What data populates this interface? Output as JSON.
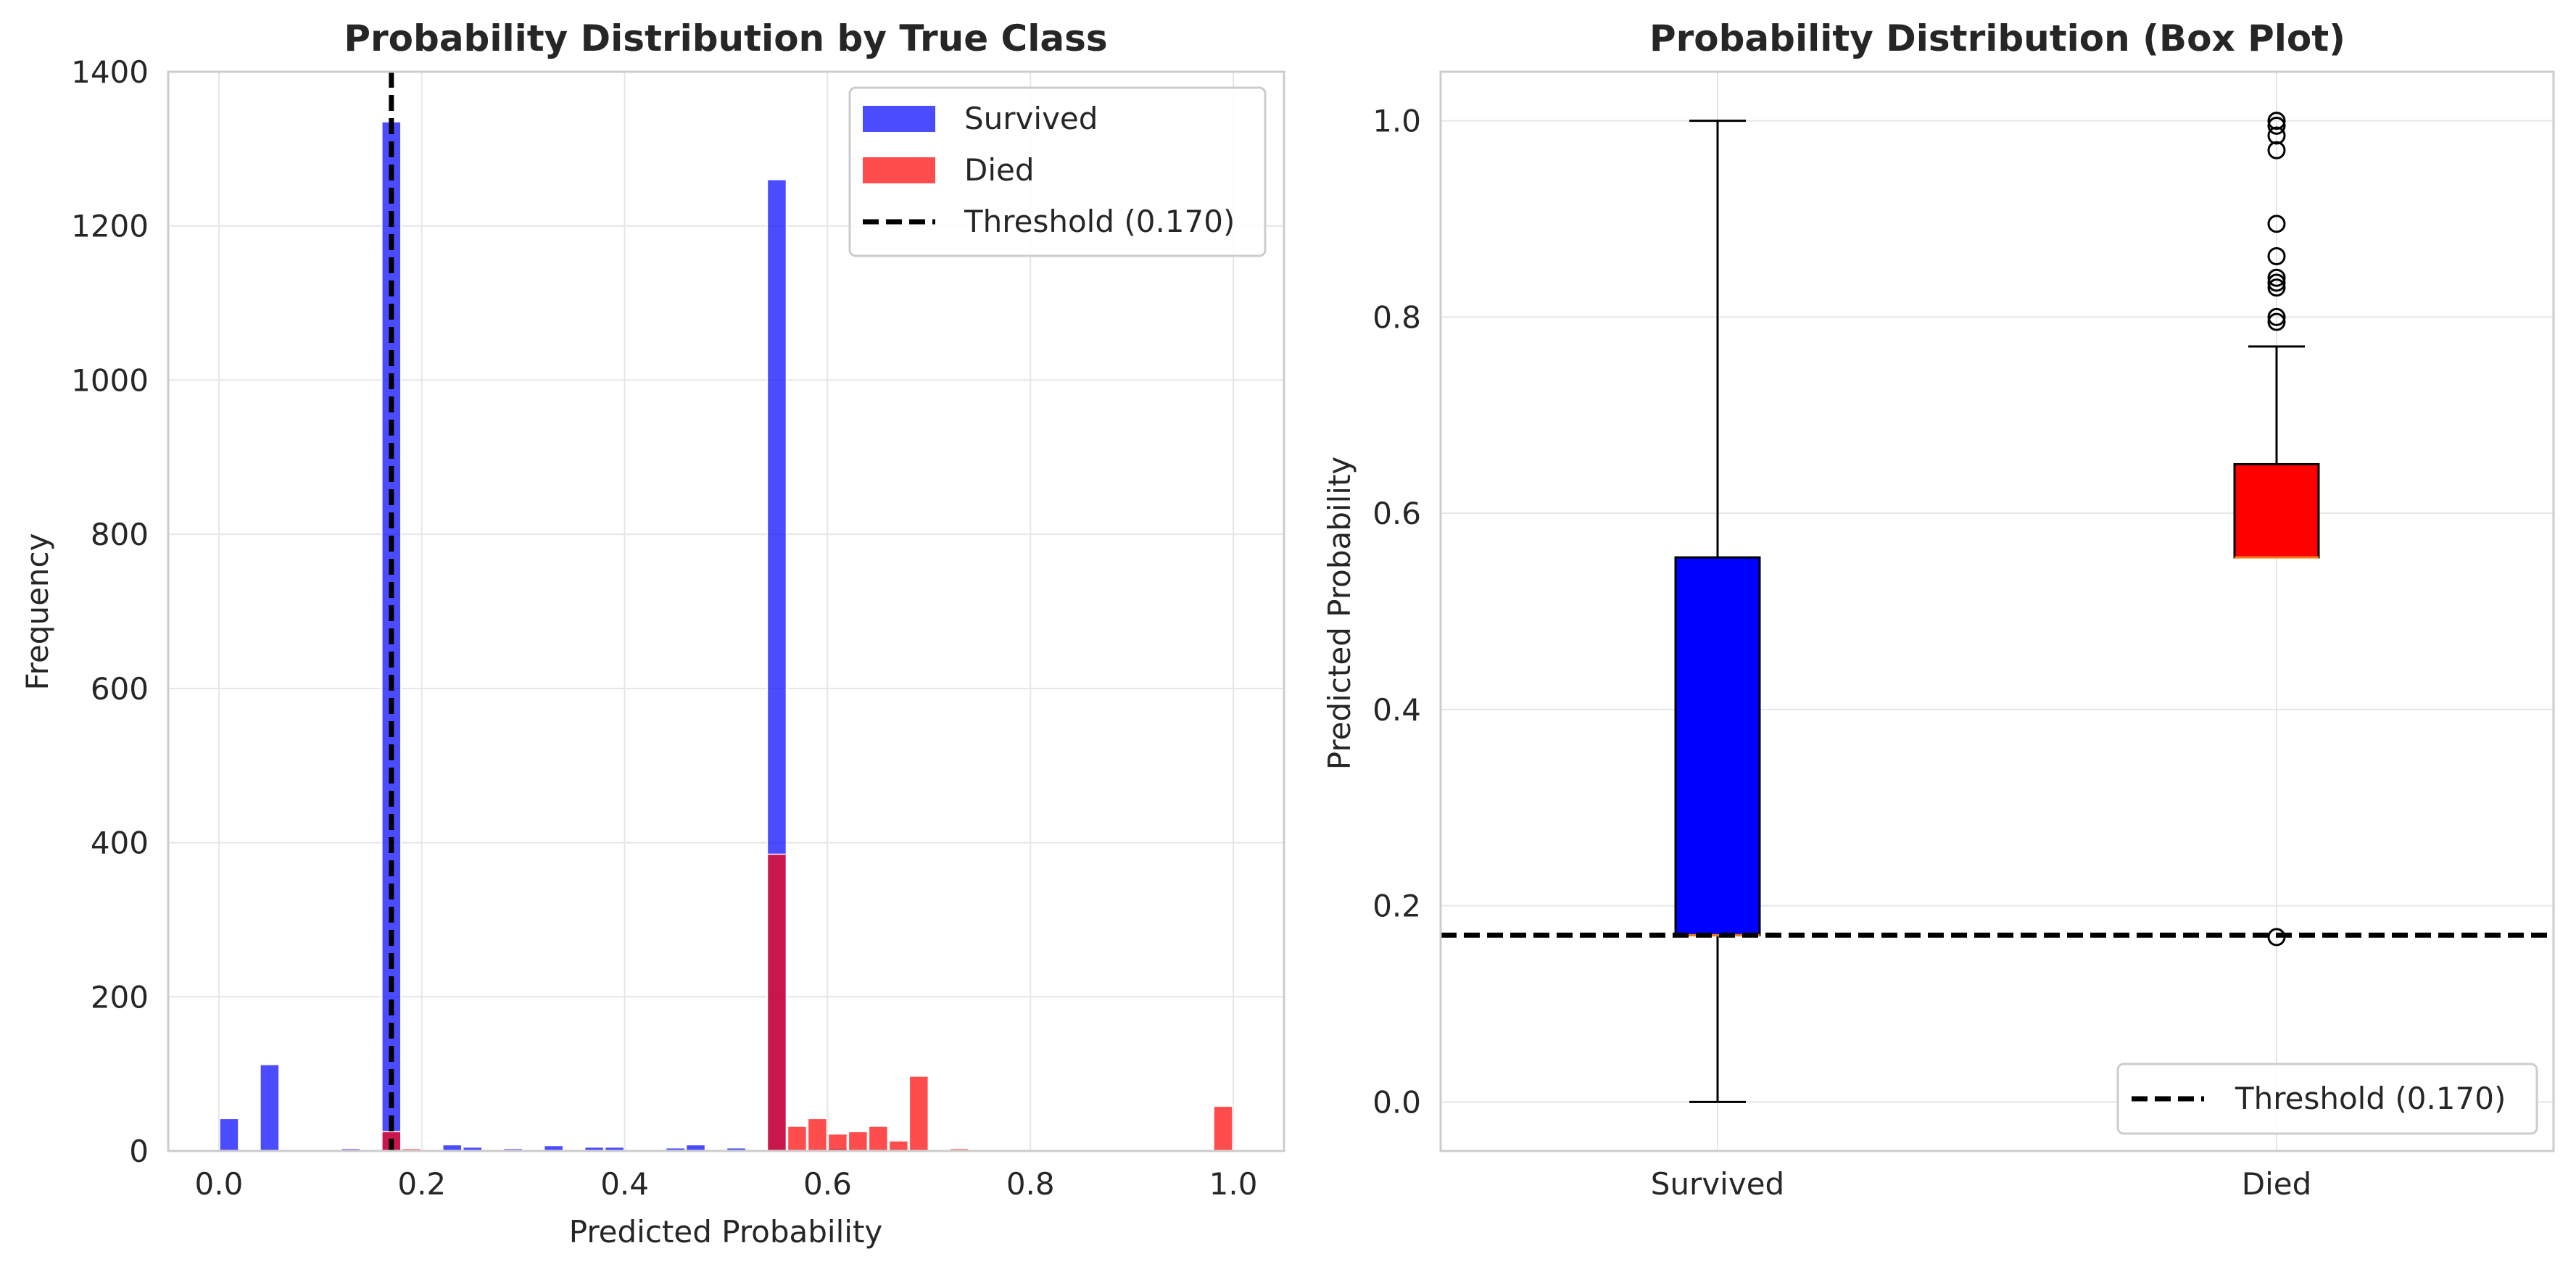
{
  "figure": {
    "background": "#ffffff",
    "grid_color": "#e6e6e6",
    "spine_color": "#cccccc"
  },
  "chart_data": [
    {
      "type": "histogram",
      "title": "Probability Distribution by True Class",
      "xlabel": "Predicted Probability",
      "ylabel": "Frequency",
      "xlim": [
        -0.05,
        1.05
      ],
      "ylim": [
        0,
        1400
      ],
      "xticks": [
        0.0,
        0.2,
        0.4,
        0.6,
        0.8,
        1.0
      ],
      "xtick_labels": [
        "0.0",
        "0.2",
        "0.4",
        "0.6",
        "0.8",
        "1.0"
      ],
      "yticks": [
        0,
        200,
        400,
        600,
        800,
        1000,
        1200,
        1400
      ],
      "ytick_labels": [
        "0",
        "200",
        "400",
        "600",
        "800",
        "1000",
        "1200",
        "1400"
      ],
      "grid": true,
      "legend_position": "top-right",
      "bin_width": 0.02,
      "series": [
        {
          "name": "Survived",
          "color": "#0000ff",
          "alpha": 0.7,
          "bins": [
            {
              "x": 0.0,
              "count": 42
            },
            {
              "x": 0.04,
              "count": 112
            },
            {
              "x": 0.12,
              "count": 3
            },
            {
              "x": 0.16,
              "count": 1335
            },
            {
              "x": 0.22,
              "count": 8
            },
            {
              "x": 0.24,
              "count": 5
            },
            {
              "x": 0.28,
              "count": 3
            },
            {
              "x": 0.32,
              "count": 7
            },
            {
              "x": 0.36,
              "count": 5
            },
            {
              "x": 0.38,
              "count": 5
            },
            {
              "x": 0.44,
              "count": 4
            },
            {
              "x": 0.46,
              "count": 8
            },
            {
              "x": 0.5,
              "count": 4
            },
            {
              "x": 0.54,
              "count": 1260
            },
            {
              "x": 0.6,
              "count": 3
            },
            {
              "x": 0.7,
              "count": 2
            }
          ]
        },
        {
          "name": "Died",
          "color": "#ff0000",
          "alpha": 0.7,
          "bins": [
            {
              "x": 0.16,
              "count": 25
            },
            {
              "x": 0.18,
              "count": 3
            },
            {
              "x": 0.54,
              "count": 385
            },
            {
              "x": 0.56,
              "count": 32
            },
            {
              "x": 0.58,
              "count": 42
            },
            {
              "x": 0.6,
              "count": 22
            },
            {
              "x": 0.62,
              "count": 25
            },
            {
              "x": 0.64,
              "count": 32
            },
            {
              "x": 0.66,
              "count": 13
            },
            {
              "x": 0.68,
              "count": 97
            },
            {
              "x": 0.72,
              "count": 3
            },
            {
              "x": 0.84,
              "count": 2
            },
            {
              "x": 0.98,
              "count": 58
            }
          ]
        }
      ],
      "threshold": {
        "value": 0.17,
        "label": "Threshold (0.170)",
        "color": "#000000",
        "style": "dashed"
      }
    },
    {
      "type": "box",
      "title": "Probability Distribution (Box Plot)",
      "xlabel": "",
      "ylabel": "Predicted Probability",
      "ylim": [
        -0.05,
        1.05
      ],
      "yticks": [
        0.0,
        0.2,
        0.4,
        0.6,
        0.8,
        1.0
      ],
      "ytick_labels": [
        "0.0",
        "0.2",
        "0.4",
        "0.6",
        "0.8",
        "1.0"
      ],
      "categories": [
        "Survived",
        "Died"
      ],
      "grid": true,
      "legend_position": "bottom-right",
      "boxes": [
        {
          "name": "Survived",
          "color": "#0000ff",
          "median_color": "#ff7f0e",
          "whisker_low": 0.0,
          "q1": 0.17,
          "median": 0.17,
          "q3": 0.555,
          "whisker_high": 1.0,
          "outliers": []
        },
        {
          "name": "Died",
          "color": "#ff0000",
          "median_color": "#ff7f0e",
          "whisker_low": 0.555,
          "q1": 0.555,
          "median": 0.555,
          "q3": 0.65,
          "whisker_high": 0.77,
          "outliers": [
            1.0,
            0.995,
            0.985,
            0.97,
            0.895,
            0.862,
            0.84,
            0.835,
            0.83,
            0.8,
            0.795,
            0.168
          ]
        }
      ],
      "threshold": {
        "value": 0.17,
        "label": "Threshold (0.170)",
        "color": "#000000",
        "style": "dashed"
      }
    }
  ]
}
